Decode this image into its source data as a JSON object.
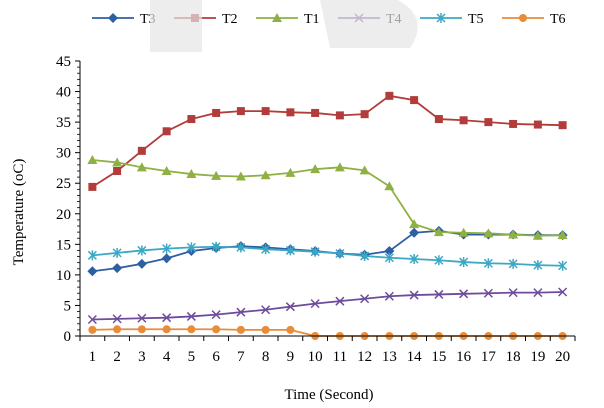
{
  "chart_data": {
    "type": "line",
    "title": "",
    "xlabel": "Time (Second)",
    "ylabel": "Temperature (oC)",
    "x": [
      1,
      2,
      3,
      4,
      5,
      6,
      7,
      8,
      9,
      10,
      11,
      12,
      13,
      14,
      15,
      16,
      17,
      18,
      19,
      20
    ],
    "ylim": [
      0,
      45
    ],
    "yticks": [
      0,
      5,
      10,
      15,
      20,
      25,
      30,
      35,
      40,
      45
    ],
    "grid": false,
    "legend_position": "top",
    "series": [
      {
        "name": "T3",
        "color": "#2e5fa3",
        "marker": "diamond",
        "values": [
          10.6,
          11.1,
          11.8,
          12.7,
          13.9,
          14.4,
          14.7,
          14.5,
          14.2,
          13.9,
          13.5,
          13.3,
          13.9,
          16.9,
          17.2,
          16.6,
          16.6,
          16.6,
          16.5,
          16.5
        ]
      },
      {
        "name": "T2",
        "color": "#b23c3a",
        "marker": "square",
        "values": [
          24.4,
          27.0,
          30.3,
          33.5,
          35.5,
          36.5,
          36.8,
          36.8,
          36.6,
          36.5,
          36.1,
          36.3,
          39.3,
          38.6,
          35.5,
          35.3,
          35.0,
          34.7,
          34.6,
          34.5
        ]
      },
      {
        "name": "T1",
        "color": "#8fb043",
        "marker": "triangle",
        "values": [
          28.8,
          28.4,
          27.6,
          27.0,
          26.5,
          26.2,
          26.1,
          26.3,
          26.7,
          27.3,
          27.6,
          27.1,
          24.5,
          18.3,
          17.0,
          16.9,
          16.8,
          16.6,
          16.4,
          16.5
        ]
      },
      {
        "name": "T4",
        "color": "#6d4c9b",
        "marker": "x",
        "values": [
          2.7,
          2.8,
          2.9,
          3.0,
          3.2,
          3.5,
          3.9,
          4.3,
          4.8,
          5.3,
          5.7,
          6.1,
          6.5,
          6.7,
          6.8,
          6.9,
          7.0,
          7.1,
          7.1,
          7.2
        ]
      },
      {
        "name": "T5",
        "color": "#3ba8c5",
        "marker": "star",
        "values": [
          13.2,
          13.6,
          14.0,
          14.3,
          14.5,
          14.6,
          14.5,
          14.2,
          14.0,
          13.8,
          13.5,
          13.1,
          12.8,
          12.6,
          12.4,
          12.1,
          11.9,
          11.8,
          11.6,
          11.5
        ]
      },
      {
        "name": "T6",
        "color": "#e98c3a",
        "marker": "circle",
        "values": [
          1.0,
          1.1,
          1.1,
          1.1,
          1.1,
          1.1,
          1.0,
          1.0,
          1.0,
          0.0,
          0.0,
          0.0,
          0.0,
          0.0,
          0.0,
          0.0,
          0.0,
          0.0,
          0.0,
          0.0
        ]
      }
    ]
  }
}
